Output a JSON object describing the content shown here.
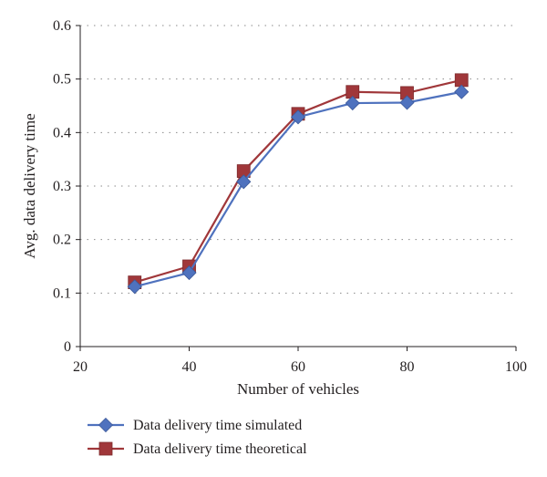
{
  "chart_data": {
    "type": "line",
    "title": "",
    "xlabel": "Number of vehicles",
    "ylabel": "Avg. data delivery time",
    "xlim": [
      20,
      100
    ],
    "ylim": [
      0,
      0.6
    ],
    "xticks": [
      20,
      40,
      60,
      80,
      100
    ],
    "xtick_labels": [
      "20",
      "40",
      "60",
      "80",
      "100"
    ],
    "yticks": [
      0,
      0.1,
      0.2,
      0.3,
      0.4,
      0.5,
      0.6
    ],
    "ytick_labels": [
      "0",
      "0.1",
      "0.2",
      "0.3",
      "0.4",
      "0.5",
      "0.6"
    ],
    "grid": "horizontal dotted",
    "legend_position": "bottom",
    "x": [
      30,
      40,
      50,
      60,
      70,
      80,
      90
    ],
    "series": [
      {
        "name": "Data delivery time simulated",
        "values": [
          0.112,
          0.138,
          0.308,
          0.429,
          0.455,
          0.456,
          0.476
        ],
        "color": "#4f72be",
        "marker": "diamond"
      },
      {
        "name": "Data delivery time theoretical",
        "values": [
          0.12,
          0.15,
          0.328,
          0.435,
          0.476,
          0.474,
          0.498
        ],
        "color": "#a0373a",
        "marker": "square"
      }
    ]
  }
}
